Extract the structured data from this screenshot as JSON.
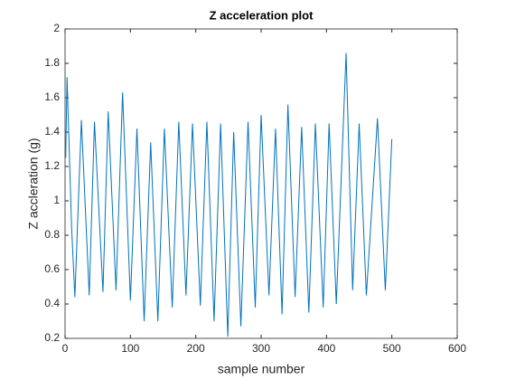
{
  "chart_data": {
    "type": "line",
    "title": "Z acceleration plot",
    "x_label": "sample number",
    "y_label": "Z accleration (g)",
    "x": [
      1,
      3,
      10,
      15,
      25,
      37,
      45,
      58,
      66,
      78,
      88,
      100,
      110,
      121,
      131,
      142,
      152,
      164,
      174,
      185,
      195,
      207,
      217,
      228,
      238,
      249,
      258,
      269,
      280,
      291,
      300,
      312,
      322,
      332,
      341,
      352,
      362,
      373,
      383,
      395,
      404,
      415,
      430,
      440,
      450,
      461,
      478,
      490,
      500
    ],
    "series": [
      {
        "name": "Z",
        "color": "#0072bd",
        "values": [
          1.25,
          1.72,
          0.85,
          0.44,
          1.47,
          0.45,
          1.46,
          0.47,
          1.52,
          0.48,
          1.63,
          0.42,
          1.42,
          0.3,
          1.34,
          0.3,
          1.42,
          0.38,
          1.46,
          0.45,
          1.45,
          0.39,
          1.46,
          0.3,
          1.45,
          0.21,
          1.4,
          0.27,
          1.46,
          0.38,
          1.5,
          0.45,
          1.42,
          0.34,
          1.56,
          0.44,
          1.43,
          0.35,
          1.45,
          0.38,
          1.45,
          0.4,
          1.86,
          0.48,
          1.45,
          0.45,
          1.48,
          0.48,
          1.36
        ]
      }
    ],
    "xlim": [
      0,
      600
    ],
    "xticks": [
      0,
      100,
      200,
      300,
      400,
      500,
      600
    ],
    "ylim": [
      0.2,
      2
    ],
    "yticks": [
      0.2,
      0.4,
      0.6,
      0.8,
      1,
      1.2,
      1.4,
      1.6,
      1.8,
      2
    ]
  }
}
